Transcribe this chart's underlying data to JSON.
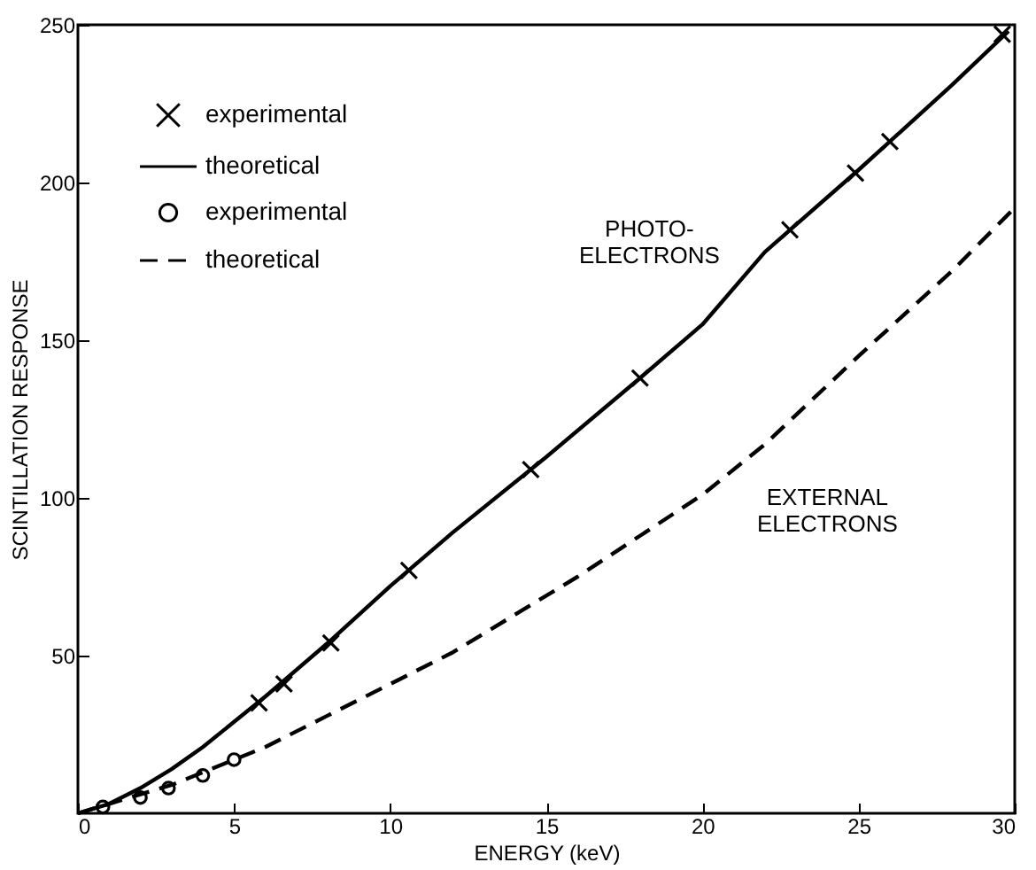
{
  "chart_data": {
    "type": "line",
    "xlabel": "ENERGY (keV)",
    "ylabel": "SCINTILLATION RESPONSE",
    "xlim": [
      0,
      30
    ],
    "xticks": [
      0,
      5,
      10,
      15,
      20,
      25,
      30
    ],
    "ylim": [
      0,
      250
    ],
    "yticks": [
      50,
      100,
      150,
      200,
      250
    ],
    "grid": false,
    "legend": "top left",
    "series": [
      {
        "name": "experimental",
        "type": "scatter",
        "marker": "cross",
        "color": "#000000",
        "x": [
          5.8,
          6.6,
          8.1,
          10.6,
          14.5,
          18.0,
          22.8,
          24.9,
          26.0,
          29.6
        ],
        "values": [
          35,
          41,
          54,
          77,
          109,
          138,
          185,
          203,
          213,
          247
        ]
      },
      {
        "name": "theoretical",
        "type": "line",
        "line_style": "solid",
        "color": "#000000",
        "x": [
          0,
          1,
          2,
          3,
          4,
          5,
          6,
          8,
          10,
          12,
          15,
          18,
          20,
          22,
          25,
          28,
          29.8
        ],
        "values": [
          0,
          3,
          8,
          14,
          21,
          29,
          37,
          54,
          72,
          89,
          113,
          138,
          155,
          178,
          204,
          231,
          248
        ]
      },
      {
        "name": "experimental",
        "type": "scatter",
        "marker": "circle",
        "color": "#000000",
        "x": [
          0.8,
          2.0,
          2.9,
          4.0,
          5.0
        ],
        "values": [
          2,
          5,
          8,
          12,
          17
        ]
      },
      {
        "name": "theoretical",
        "type": "line",
        "line_style": "dashed",
        "color": "#000000",
        "x": [
          0,
          1,
          2,
          3,
          4,
          5,
          6,
          8,
          10,
          12,
          14,
          16,
          18,
          20,
          22,
          25,
          28,
          30
        ],
        "values": [
          0,
          3,
          6,
          9,
          13,
          17,
          21,
          31,
          41,
          51,
          63,
          75,
          88,
          101,
          117,
          145,
          172,
          192
        ]
      }
    ],
    "annotations": [
      "PHOTO-\nELECTRONS",
      "EXTERNAL\nELECTRONS"
    ]
  }
}
